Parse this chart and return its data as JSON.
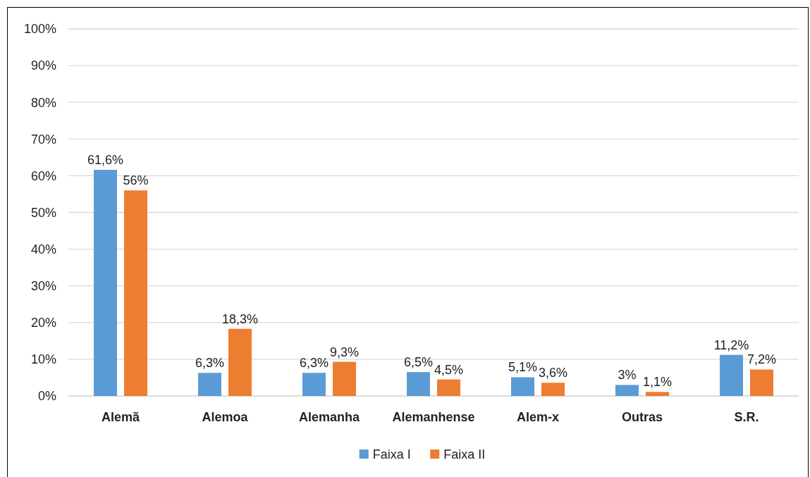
{
  "chart_data": {
    "type": "bar",
    "categories": [
      "Alemã",
      "Alemoa",
      "Alemanha",
      "Alemanhense",
      "Alem-x",
      "Outras",
      "S.R."
    ],
    "series": [
      {
        "name": "Faixa I",
        "color": "#5b9bd5",
        "values": [
          61.6,
          6.3,
          6.3,
          6.5,
          5.1,
          3,
          11.2
        ],
        "value_labels": [
          "61,6%",
          "6,3%",
          "6,3%",
          "6,5%",
          "5,1%",
          "3%",
          "11,2%"
        ]
      },
      {
        "name": "Faixa II",
        "color": "#ed7d31",
        "values": [
          56,
          18.3,
          9.3,
          4.5,
          3.6,
          1.1,
          7.2
        ],
        "value_labels": [
          "56%",
          "18,3%",
          "9,3%",
          "4,5%",
          "3,6%",
          "1,1%",
          "7,2%"
        ]
      }
    ],
    "ylim": [
      0,
      100
    ],
    "yticks": [
      {
        "value": 0,
        "label": "0%"
      },
      {
        "value": 10,
        "label": "10%"
      },
      {
        "value": 20,
        "label": "20%"
      },
      {
        "value": 30,
        "label": "30%"
      },
      {
        "value": 40,
        "label": "40%"
      },
      {
        "value": 50,
        "label": "50%"
      },
      {
        "value": 60,
        "label": "60%"
      },
      {
        "value": 70,
        "label": "70%"
      },
      {
        "value": 80,
        "label": "80%"
      },
      {
        "value": 90,
        "label": "90%"
      },
      {
        "value": 100,
        "label": "100%"
      }
    ],
    "grid": "y",
    "legend": "bottom"
  }
}
